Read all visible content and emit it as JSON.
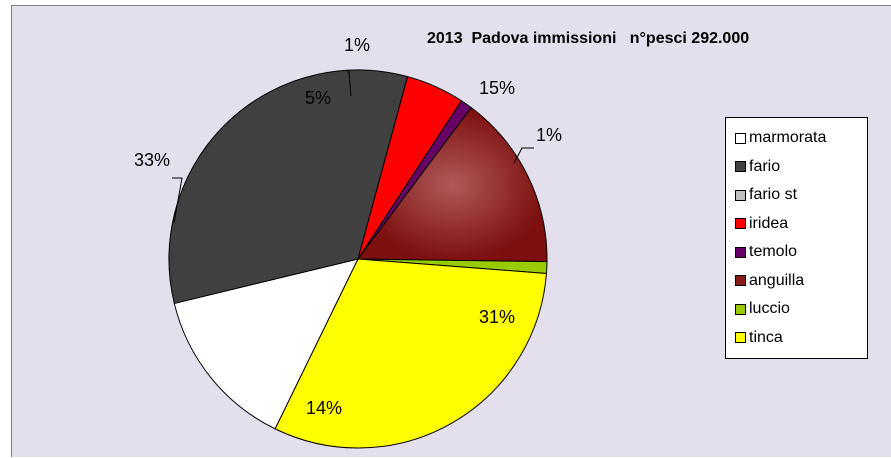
{
  "chart_data": {
    "type": "pie",
    "title": "2013  Padova immissioni   n°pesci 292.000",
    "legend_position": "right",
    "slices": [
      {
        "name": "marmorata",
        "value": 14,
        "label": "14%",
        "color": "#ffffff"
      },
      {
        "name": "fario",
        "value": 33,
        "label": "33%",
        "color": "#404040"
      },
      {
        "name": "fario st",
        "value": 0,
        "label": "",
        "color": "#c0c0c0"
      },
      {
        "name": "iridea",
        "value": 5,
        "label": "5%",
        "color": "#ff0000"
      },
      {
        "name": "temolo",
        "value": 1,
        "label": "1%",
        "color": "#660066"
      },
      {
        "name": "anguilla",
        "value": 15,
        "label": "15%",
        "color": "#8b1c1c"
      },
      {
        "name": "luccio",
        "value": 1,
        "label": "1%",
        "color": "#99cc00"
      },
      {
        "name": "tinca",
        "value": 31,
        "label": "31%",
        "color": "#ffff00"
      }
    ]
  }
}
